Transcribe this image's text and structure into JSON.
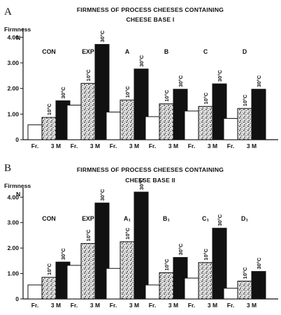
{
  "chart_data": [
    {
      "type": "bar",
      "panel_label": "A",
      "title": "FIRMNESS OF PROCESS CHEESES CONTAINING",
      "subtitle": "CHEESE BASE I",
      "ylabel": "Firmness",
      "yunit": "N",
      "ylim": [
        0,
        4.2
      ],
      "yticks": [
        "0",
        "1.00",
        "2.00",
        "3.00",
        "4.00"
      ],
      "grid": false,
      "categories": [
        "CON",
        "EXP",
        "A",
        "B",
        "C",
        "D"
      ],
      "xticklabels": [
        "Fr.",
        "3 M"
      ],
      "series": [
        {
          "name": "Fr.",
          "values": [
            0.58,
            1.35,
            1.08,
            0.9,
            1.12,
            0.83
          ]
        },
        {
          "name": "10°C",
          "values": [
            0.87,
            2.2,
            1.55,
            1.4,
            1.3,
            1.22
          ]
        },
        {
          "name": "30°C",
          "values": [
            1.52,
            3.72,
            2.76,
            1.97,
            2.18,
            1.97
          ]
        }
      ],
      "bar_labels": [
        "10°C",
        "30°C"
      ]
    },
    {
      "type": "bar",
      "panel_label": "B",
      "title": "FIRMNESS OF PROCESS CHEESES CONTAINING",
      "subtitle": "CHEESE BASE II",
      "ylabel": "Firmness",
      "yunit": "N",
      "ylim": [
        0,
        4.2
      ],
      "yticks": [
        "0",
        "1.00",
        "2.00",
        "3.00",
        "4.00"
      ],
      "grid": false,
      "categories": [
        "CON",
        "EXP",
        "A₁",
        "B₁",
        "C₁",
        "D₁"
      ],
      "xticklabels": [
        "Fr.",
        "3 M"
      ],
      "series": [
        {
          "name": "Fr.",
          "values": [
            0.55,
            1.32,
            1.2,
            0.55,
            0.82,
            0.42
          ]
        },
        {
          "name": "10°C",
          "values": [
            0.85,
            2.18,
            2.25,
            1.03,
            1.43,
            0.7
          ]
        },
        {
          "name": "30°C",
          "values": [
            1.45,
            3.77,
            4.2,
            1.63,
            2.78,
            1.08
          ]
        }
      ],
      "bar_labels": [
        "10°C",
        "30°C"
      ]
    }
  ],
  "colors": {
    "fresh": "#ffffff",
    "ten": "#bdbdbd",
    "thirty": "#111111",
    "ink": "#111111"
  }
}
